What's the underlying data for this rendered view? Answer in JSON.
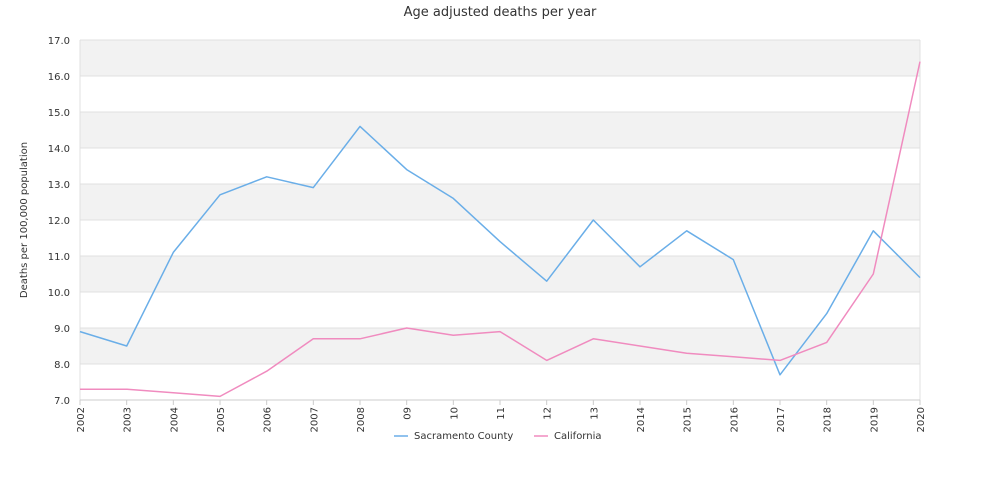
{
  "chart_data": {
    "type": "line",
    "title": "Age adjusted deaths per year",
    "xlabel": "",
    "ylabel": "Deaths per 100,000 population",
    "categories": [
      "2002",
      "2003",
      "2004",
      "2005",
      "2006",
      "2007",
      "2008",
      "09",
      "10",
      "11",
      "12",
      "13",
      "2014",
      "2015",
      "2016",
      "2017",
      "2018",
      "2019",
      "2020"
    ],
    "ylim": [
      7.0,
      17.0
    ],
    "yticks": [
      "7.0",
      "8.0",
      "9.0",
      "10.0",
      "11.0",
      "12.0",
      "13.0",
      "14.0",
      "15.0",
      "16.0",
      "17.0"
    ],
    "grid": "horizontal bands",
    "legend_position": "bottom",
    "series": [
      {
        "name": "Sacramento County",
        "color": "#6aaee8",
        "values": [
          8.9,
          8.5,
          11.1,
          12.7,
          13.2,
          12.9,
          14.6,
          13.4,
          12.6,
          11.4,
          10.3,
          12.0,
          10.7,
          11.7,
          10.9,
          7.7,
          9.4,
          11.7,
          10.4
        ]
      },
      {
        "name": "California",
        "color": "#f08bbf",
        "values": [
          7.3,
          7.3,
          7.2,
          7.1,
          7.8,
          8.7,
          8.7,
          9.0,
          8.8,
          8.9,
          8.1,
          8.7,
          8.5,
          8.3,
          8.2,
          8.1,
          8.6,
          10.5,
          16.4
        ]
      }
    ]
  }
}
